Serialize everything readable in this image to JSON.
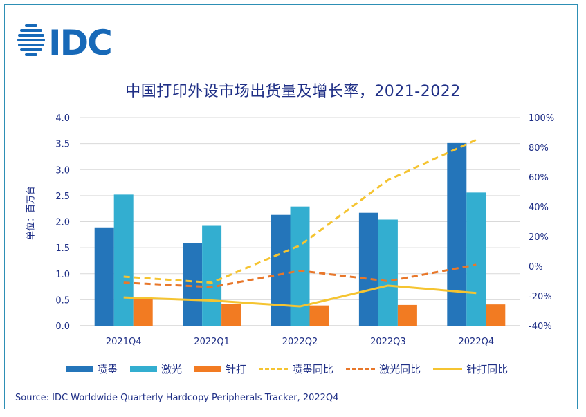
{
  "logo": {
    "text": "IDC",
    "color": "#1769b8"
  },
  "chart_data": {
    "type": "bar",
    "title": "中国打印外设市场出货量及增长率，2021-2022",
    "ylabel": "单位：百万台",
    "xlabel": "",
    "categories": [
      "2021Q4",
      "2022Q1",
      "2022Q2",
      "2022Q3",
      "2022Q4"
    ],
    "ylim": [
      0,
      4.0
    ],
    "yticks": [
      "0.0",
      "0.5",
      "1.0",
      "1.5",
      "2.0",
      "2.5",
      "3.0",
      "3.5",
      "4.0"
    ],
    "y2lim": [
      -40,
      100
    ],
    "y2ticks": [
      "-40%",
      "-20%",
      "0%",
      "20%",
      "40%",
      "60%",
      "80%",
      "100%"
    ],
    "grid": true,
    "legend_position": "bottom",
    "bar_series": [
      {
        "name": "喷墨",
        "color": "#2475ba",
        "values": [
          1.89,
          1.59,
          2.13,
          2.17,
          3.51
        ]
      },
      {
        "name": "激光",
        "color": "#33aed0",
        "values": [
          2.52,
          1.92,
          2.29,
          2.04,
          2.56
        ]
      },
      {
        "name": "针打",
        "color": "#f27b22",
        "values": [
          0.51,
          0.42,
          0.39,
          0.4,
          0.41
        ]
      }
    ],
    "line_series": [
      {
        "name": "喷墨同比",
        "color": "#f5c431",
        "style": "dashed",
        "values": [
          -7,
          -11,
          14,
          58,
          85
        ]
      },
      {
        "name": "激光同比",
        "color": "#e8772a",
        "style": "dashed",
        "values": [
          -11,
          -14,
          -3,
          -10,
          1
        ]
      },
      {
        "name": "针打同比",
        "color": "#f5c431",
        "style": "solid",
        "values": [
          -21,
          -23,
          -27,
          -13,
          -18
        ]
      }
    ]
  },
  "source": "Source:  IDC Worldwide Quarterly Hardcopy Peripherals Tracker, 2022Q4"
}
